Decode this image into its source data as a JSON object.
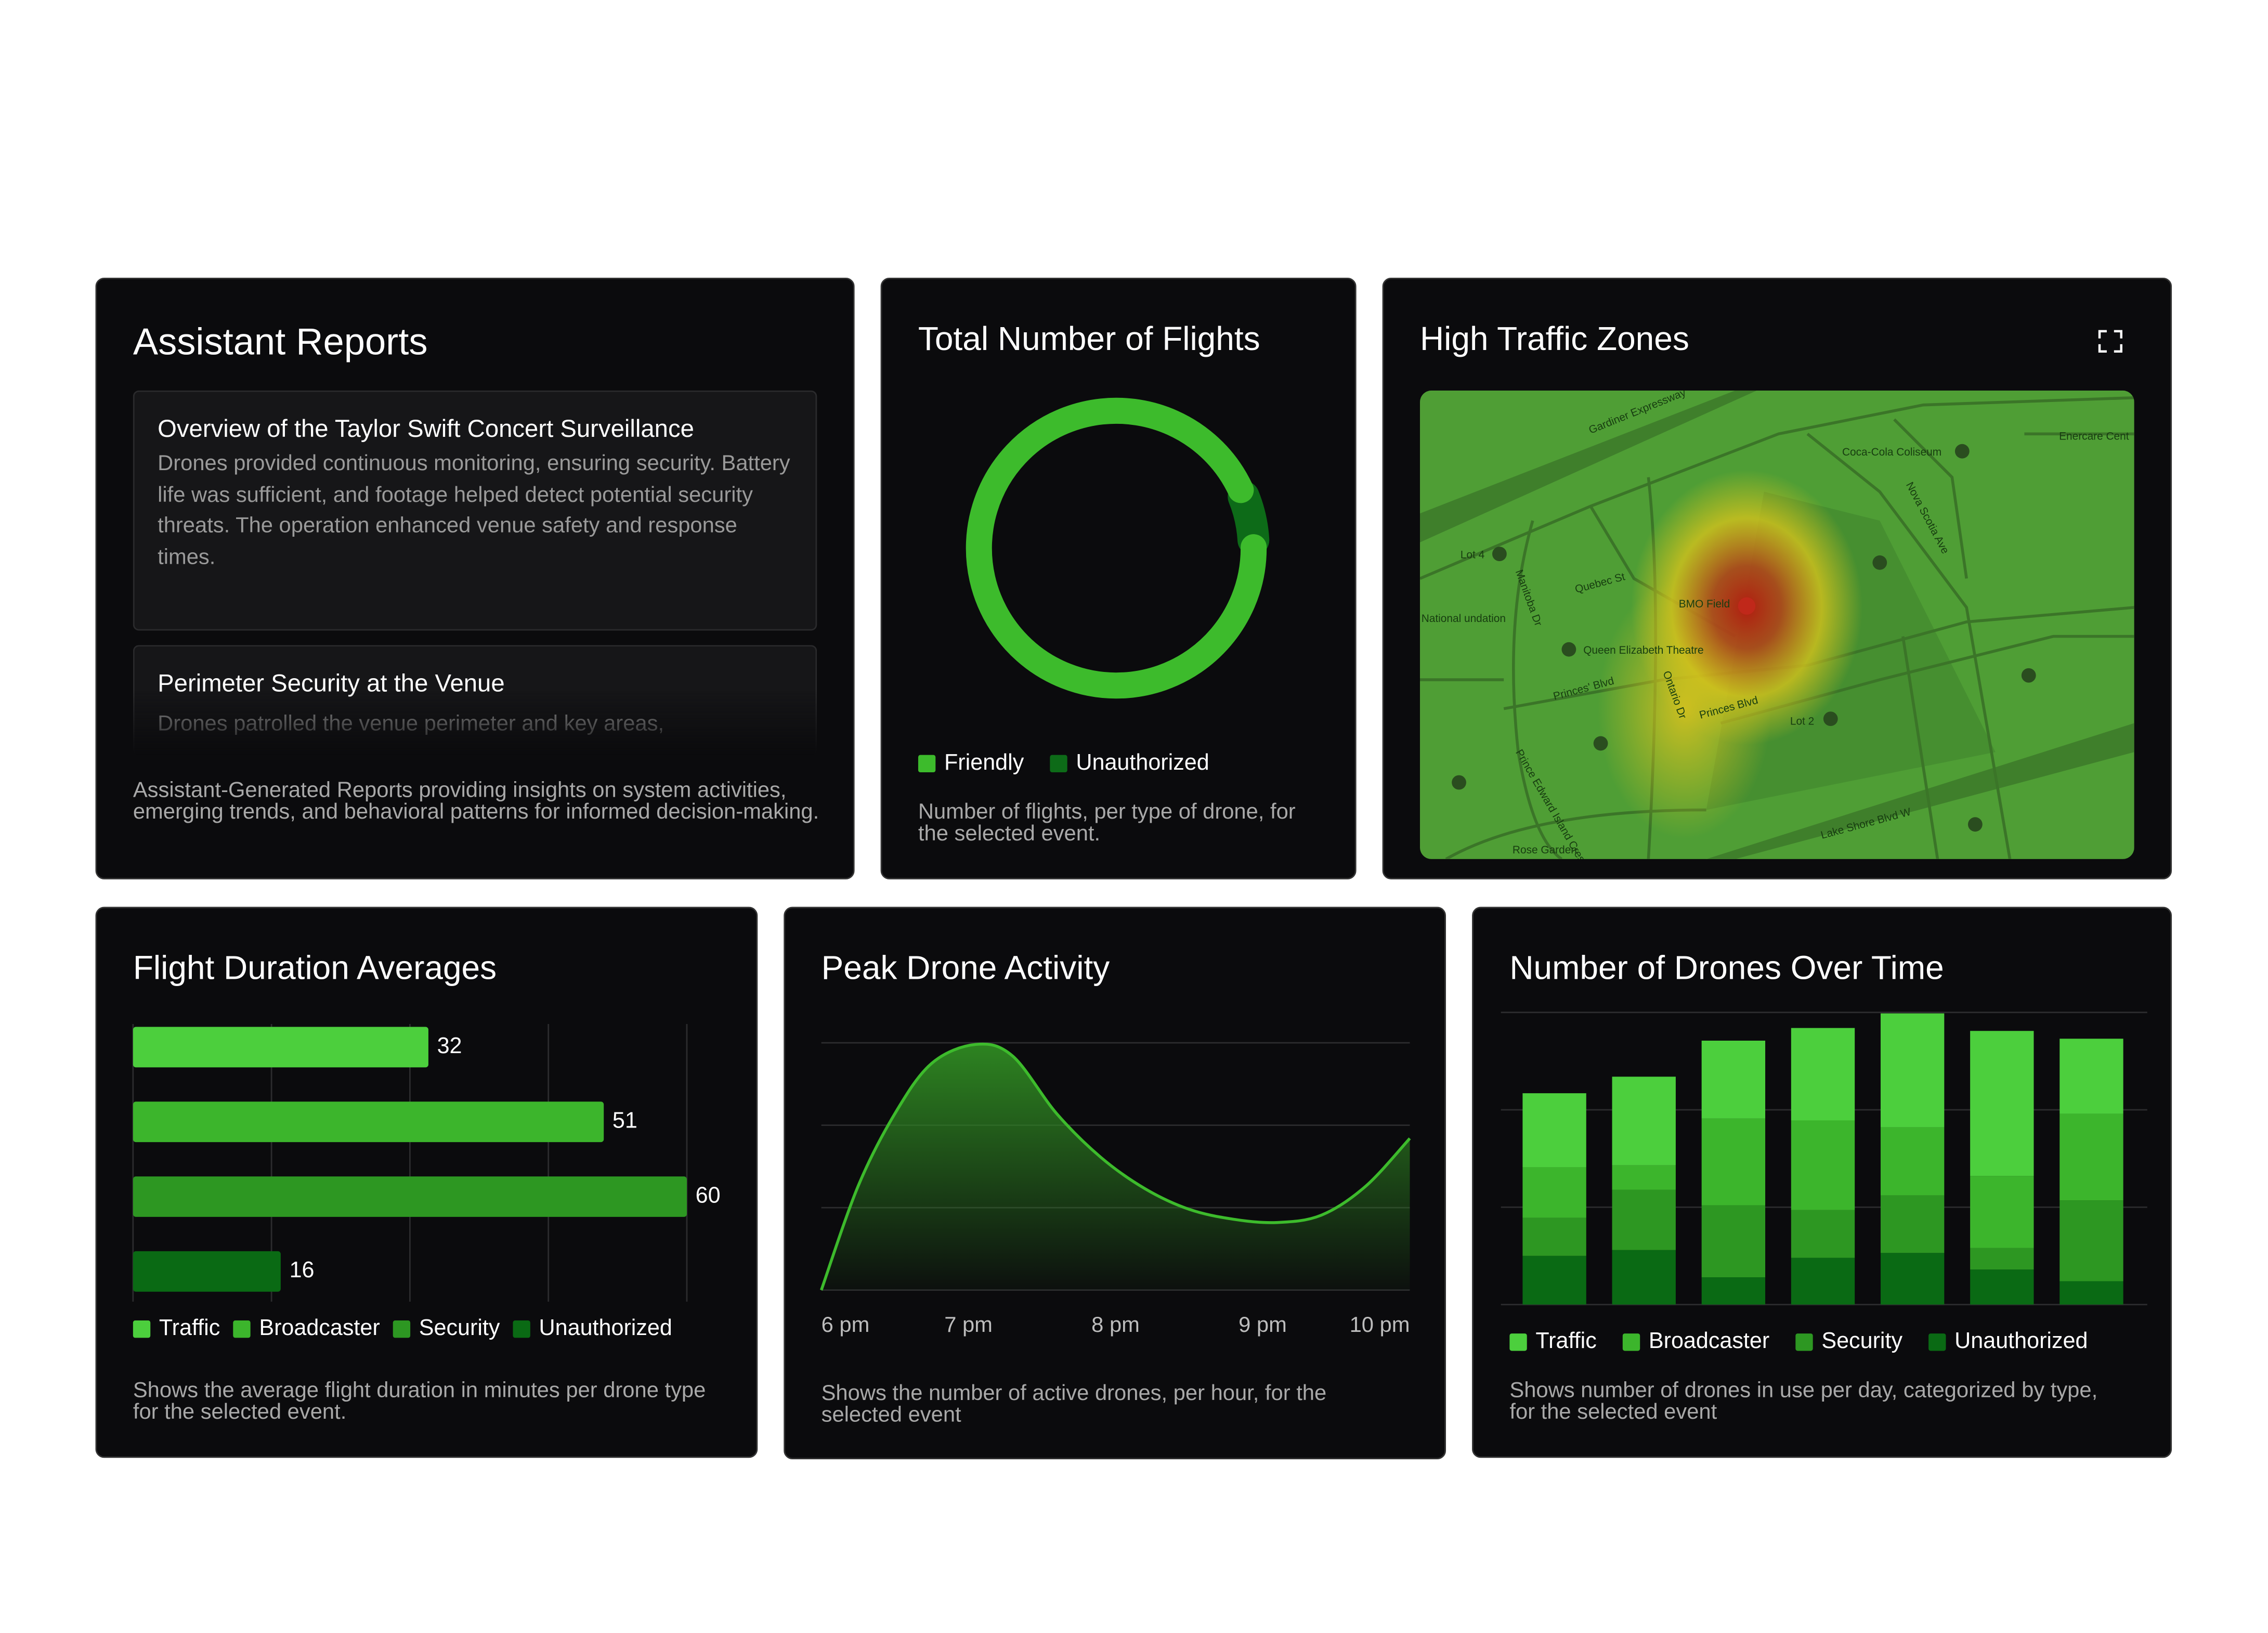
{
  "reports": {
    "title": "Assistant Reports",
    "items": [
      {
        "title": "Overview of the Taylor Swift Concert Surveillance",
        "text": "Drones provided continuous monitoring, ensuring security. Battery life was sufficient, and footage helped detect potential security threats. The operation enhanced venue safety and response times."
      },
      {
        "title": "Perimeter Security at the Venue",
        "text": "Drones patrolled the venue perimeter and key areas,"
      }
    ],
    "description": "Assistant-Generated Reports providing insights on system activities, emerging trends, and behavioral patterns for informed decision-making."
  },
  "map": {
    "title": "High Traffic Zones",
    "labels": [
      "Gardiner Expressway",
      "Coca-Cola Coliseum",
      "Enercare Cent",
      "Lot 4",
      "Quebec St",
      "BMO Field",
      "Queen Elizabeth Theatre",
      "Princes' Blvd",
      "Princes Blvd",
      "Lot 2",
      "Ontario Dr",
      "Manitoba Dr",
      "Nova Scotia Ave",
      "Lake Shore Blvd W",
      "Prince Edward Island Crescent",
      "Rose Garden",
      "National\nundation"
    ]
  },
  "chart_data": [
    {
      "type": "donut",
      "title": "Total Number of Flights",
      "categories": [
        "Friendly",
        "Unauthorized"
      ],
      "values": [
        94,
        6
      ],
      "colors": [
        "#3dbb2c",
        "#0d6b18"
      ],
      "legend": "bottom-left",
      "description": "Number of flights, per type of drone, for the selected event."
    },
    {
      "type": "hbar",
      "title": "Flight Duration Averages",
      "categories": [
        "Traffic",
        "Broadcaster",
        "Security",
        "Unauthorized"
      ],
      "values": [
        32,
        51,
        60,
        16
      ],
      "colors": [
        "#4ccf3d",
        "#3cb52c",
        "#2d9722",
        "#0a6a14"
      ],
      "xlim": [
        0,
        60
      ],
      "xticks": [
        0,
        15,
        30,
        45,
        60
      ],
      "grid": true,
      "legend": "bottom-left",
      "description": "Shows the average flight duration in minutes per drone type for the selected event."
    },
    {
      "type": "area",
      "title": "Peak Drone Activity",
      "x": [
        18,
        18.25,
        18.5,
        18.75,
        19.05,
        19.3,
        19.6,
        19.9,
        20.2,
        20.5,
        20.8,
        21.1,
        21.4,
        21.7,
        22
      ],
      "values": [
        0,
        12.6,
        21.4,
        27.5,
        29.8,
        28.4,
        21.4,
        16.1,
        12.3,
        9.8,
        8.6,
        8.2,
        9.1,
        12.6,
        18.4
      ],
      "color": "#3dbb2c",
      "xlim": [
        18,
        22
      ],
      "xticks": [
        {
          "value": 18,
          "label": "6 pm"
        },
        {
          "value": 19,
          "label": "7 pm"
        },
        {
          "value": 20,
          "label": "8 pm"
        },
        {
          "value": 21,
          "label": "9 pm"
        },
        {
          "value": 22,
          "label": "10 pm"
        }
      ],
      "ylim": [
        0,
        30
      ],
      "yticks": [
        0,
        10,
        20,
        30
      ],
      "grid": true,
      "description": "Shows the number of active drones, per hour, for the selected event"
    },
    {
      "type": "stacked_bar",
      "title": "Number of Drones Over Time",
      "categories": [
        null,
        null,
        null,
        null,
        null,
        null,
        null
      ],
      "series": [
        {
          "name": "Traffic",
          "color": "#4ccf3d",
          "values": [
            7.6,
            9.1,
            8.0,
            9.5,
            11.7,
            14.9,
            7.7
          ]
        },
        {
          "name": "Broadcaster",
          "color": "#3cb52c",
          "values": [
            5.2,
            2.5,
            8.9,
            9.2,
            7.0,
            7.4,
            8.9
          ]
        },
        {
          "name": "Security",
          "color": "#2d9722",
          "values": [
            3.9,
            6.2,
            7.4,
            4.9,
            5.9,
            2.2,
            8.3
          ]
        },
        {
          "name": "Unauthorized",
          "color": "#0a6a14",
          "values": [
            5.0,
            5.6,
            2.8,
            4.8,
            5.3,
            3.6,
            2.4
          ]
        }
      ],
      "ylim": [
        0,
        30
      ],
      "yticks": [
        0,
        10,
        20,
        30
      ],
      "grid": true,
      "legend": "bottom-left",
      "description": "Shows number of drones in use per day, categorized by type, for the selected event"
    }
  ]
}
